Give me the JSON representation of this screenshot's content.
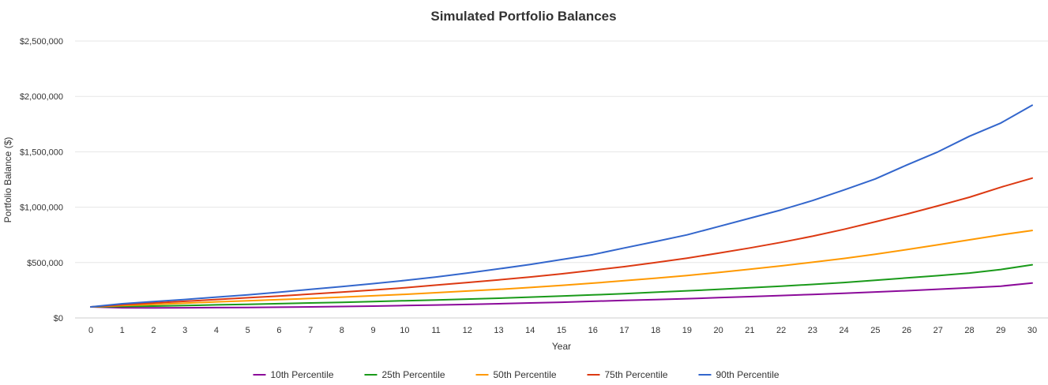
{
  "chart_data": {
    "type": "line",
    "title": "Simulated Portfolio Balances",
    "xlabel": "Year",
    "ylabel": "Portfolio Balance ($)",
    "x": [
      0,
      1,
      2,
      3,
      4,
      5,
      6,
      7,
      8,
      9,
      10,
      11,
      12,
      13,
      14,
      15,
      16,
      17,
      18,
      19,
      20,
      21,
      22,
      23,
      24,
      25,
      26,
      27,
      28,
      29,
      30
    ],
    "ylim": [
      0,
      2500000
    ],
    "yticks": [
      0,
      500000,
      1000000,
      1500000,
      2000000,
      2500000
    ],
    "ytick_labels": [
      "$0",
      "$500,000",
      "$1,000,000",
      "$1,500,000",
      "$2,000,000",
      "$2,500,000"
    ],
    "grid": true,
    "legend_position": "bottom",
    "series": [
      {
        "name": "10th Percentile",
        "color": "#8b0a9a",
        "values": [
          100000,
          92000,
          91000,
          92000,
          93000,
          95000,
          97000,
          100000,
          103000,
          107000,
          112000,
          117000,
          122000,
          128000,
          135000,
          142000,
          150000,
          158000,
          166000,
          174000,
          183000,
          192000,
          202000,
          212000,
          223000,
          234000,
          246000,
          259000,
          273000,
          287000,
          315000
        ]
      },
      {
        "name": "25th Percentile",
        "color": "#1a9a1a",
        "values": [
          100000,
          103000,
          107000,
          112000,
          118000,
          123000,
          129000,
          135000,
          141000,
          148000,
          155000,
          162000,
          170000,
          178000,
          188000,
          198000,
          208000,
          219000,
          232000,
          245000,
          258000,
          272000,
          287000,
          303000,
          320000,
          340000,
          361000,
          382000,
          405000,
          437000,
          480000
        ]
      },
      {
        "name": "50th Percentile",
        "color": "#ff9900",
        "values": [
          100000,
          112000,
          122000,
          133000,
          145000,
          155000,
          165000,
          176000,
          188000,
          200000,
          213000,
          228000,
          243000,
          258000,
          275000,
          294000,
          314000,
          336000,
          359000,
          383000,
          410000,
          440000,
          470000,
          503000,
          537000,
          575000,
          617000,
          660000,
          705000,
          750000,
          790000
        ]
      },
      {
        "name": "75th Percentile",
        "color": "#dc3912",
        "values": [
          100000,
          120000,
          135000,
          150000,
          167000,
          182000,
          198000,
          215000,
          233000,
          252000,
          273000,
          296000,
          320000,
          344000,
          370000,
          398000,
          430000,
          463000,
          500000,
          540000,
          585000,
          632000,
          682000,
          738000,
          800000,
          868000,
          937000,
          1012000,
          1090000,
          1180000,
          1262000
        ]
      },
      {
        "name": "90th Percentile",
        "color": "#3366cc",
        "values": [
          100000,
          128000,
          148000,
          167000,
          188000,
          208000,
          232000,
          258000,
          283000,
          310000,
          338000,
          370000,
          405000,
          443000,
          483000,
          527000,
          572000,
          632000,
          690000,
          750000,
          825000,
          900000,
          975000,
          1060000,
          1155000,
          1255000,
          1380000,
          1500000,
          1640000,
          1760000,
          1920000
        ]
      }
    ]
  }
}
